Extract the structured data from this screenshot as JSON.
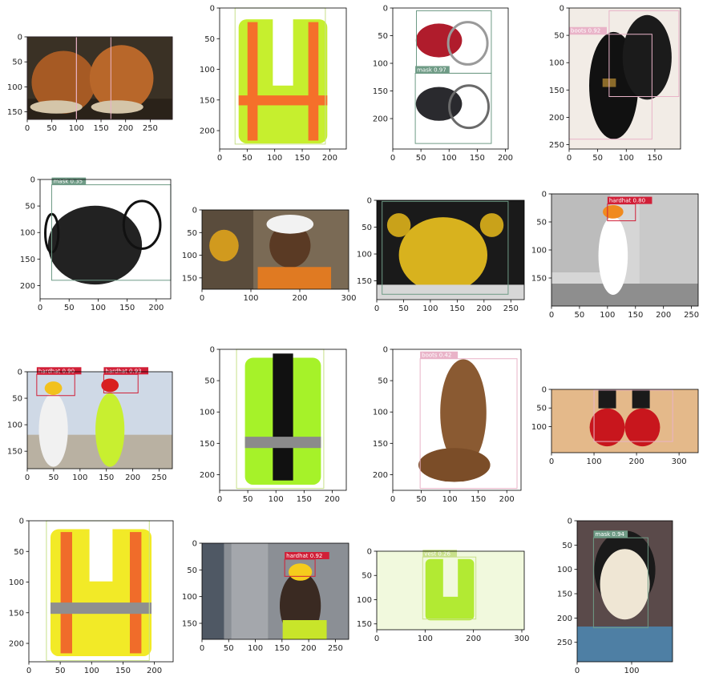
{
  "figure": {
    "rows": 4,
    "cols": 4,
    "colors": {
      "mask": "#6f9b86",
      "boots": "#e9b3c8",
      "vest": "#c8e08a",
      "hardhat": "#d11f37",
      "axes": "#000000",
      "tick_text": "#222222"
    }
  },
  "chart_data": [
    {
      "type": "image",
      "scene": "brown-leather-work-boots",
      "xlim": [
        0,
        295
      ],
      "ylim": [
        0,
        165
      ],
      "xticks": [
        0,
        50,
        100,
        150,
        200,
        250
      ],
      "yticks": [
        0,
        50,
        100,
        150
      ],
      "detections": [
        {
          "label": "",
          "class": "boots",
          "x": [
            0,
            295
          ],
          "y": [
            0,
            165
          ]
        },
        {
          "label": "",
          "class": "boots",
          "x": [
            0,
            100
          ],
          "y": [
            0,
            165
          ]
        },
        {
          "label": "",
          "class": "boots",
          "x": [
            100,
            170
          ],
          "y": [
            0,
            165
          ]
        }
      ]
    },
    {
      "type": "image",
      "scene": "hi-vis-yellow-safety-vest-orange-stripes",
      "xlim": [
        0,
        230
      ],
      "ylim": [
        0,
        230
      ],
      "xticks": [
        0,
        50,
        100,
        150,
        200
      ],
      "yticks": [
        0,
        50,
        100,
        150,
        200
      ],
      "detections": [
        {
          "label": "",
          "class": "vest",
          "x": [
            28,
            192
          ],
          "y": [
            0,
            222
          ]
        }
      ]
    },
    {
      "type": "image",
      "scene": "red-and-black-face-masks",
      "xlim": [
        0,
        205
      ],
      "ylim": [
        0,
        255
      ],
      "xticks": [
        0,
        50,
        100,
        150,
        200
      ],
      "yticks": [
        0,
        50,
        100,
        150,
        200
      ],
      "detections": [
        {
          "label": "",
          "class": "mask",
          "x": [
            42,
            175
          ],
          "y": [
            5,
            118
          ]
        },
        {
          "label": "mask 0.97",
          "class": "mask",
          "x": [
            40,
            175
          ],
          "y": [
            118,
            245
          ]
        }
      ]
    },
    {
      "type": "image",
      "scene": "black-leather-ankle-boots",
      "xlim": [
        0,
        195
      ],
      "ylim": [
        0,
        258
      ],
      "xticks": [
        0,
        50,
        100,
        150
      ],
      "yticks": [
        0,
        50,
        100,
        150,
        200,
        250
      ],
      "detections": [
        {
          "label": "boots 0.92",
          "class": "boots",
          "x": [
            0,
            145
          ],
          "y": [
            48,
            240
          ]
        },
        {
          "label": "",
          "class": "boots",
          "x": [
            70,
            192
          ],
          "y": [
            5,
            162
          ]
        }
      ]
    },
    {
      "type": "image",
      "scene": "black-disposable-face-mask",
      "xlim": [
        0,
        225
      ],
      "ylim": [
        0,
        225
      ],
      "xticks": [
        0,
        50,
        100,
        150,
        200
      ],
      "yticks": [
        0,
        50,
        100,
        150,
        200
      ],
      "detections": [
        {
          "label": "mask 0.35",
          "class": "mask",
          "x": [
            20,
            225
          ],
          "y": [
            10,
            190
          ]
        }
      ]
    },
    {
      "type": "image",
      "scene": "smiling-worker-white-hardhat",
      "xlim": [
        0,
        300
      ],
      "ylim": [
        0,
        175
      ],
      "xticks": [
        0,
        100,
        200,
        300
      ],
      "yticks": [
        0,
        50,
        100,
        150
      ],
      "detections": []
    },
    {
      "type": "image",
      "scene": "golden-ceremonial-mask",
      "xlim": [
        0,
        275
      ],
      "ylim": [
        0,
        185
      ],
      "xticks": [
        0,
        50,
        100,
        150,
        200,
        250
      ],
      "yticks": [
        0,
        50,
        100,
        150
      ],
      "detections": [
        {
          "label": "",
          "class": "mask",
          "x": [
            10,
            245
          ],
          "y": [
            2,
            175
          ]
        }
      ]
    },
    {
      "type": "image",
      "scene": "businessman-orange-hardhat-construction-site",
      "xlim": [
        0,
        262
      ],
      "ylim": [
        0,
        200
      ],
      "xticks": [
        0,
        50,
        100,
        150,
        200,
        250
      ],
      "yticks": [
        0,
        50,
        100,
        150
      ],
      "detections": [
        {
          "label": "hardhat 0.80",
          "class": "hardhat",
          "x": [
            100,
            150
          ],
          "y": [
            18,
            48
          ]
        }
      ]
    },
    {
      "type": "image",
      "scene": "two-workers-hardhats-and-vests",
      "xlim": [
        0,
        275
      ],
      "ylim": [
        0,
        183
      ],
      "xticks": [
        0,
        50,
        100,
        150,
        200,
        250
      ],
      "yticks": [
        0,
        50,
        100,
        150
      ],
      "detections": [
        {
          "label": "hardhat 0.90",
          "class": "hardhat",
          "x": [
            18,
            90
          ],
          "y": [
            5,
            45
          ]
        },
        {
          "label": "hardhat 0.93",
          "class": "hardhat",
          "x": [
            145,
            210
          ],
          "y": [
            5,
            40
          ]
        }
      ]
    },
    {
      "type": "image",
      "scene": "lime-vest-black-trim",
      "xlim": [
        0,
        225
      ],
      "ylim": [
        0,
        225
      ],
      "xticks": [
        0,
        50,
        100,
        150,
        200
      ],
      "yticks": [
        0,
        50,
        100,
        150,
        200
      ],
      "detections": [
        {
          "label": "",
          "class": "vest",
          "x": [
            30,
            185
          ],
          "y": [
            0,
            222
          ]
        }
      ]
    },
    {
      "type": "image",
      "scene": "brown-western-cowboy-boot",
      "xlim": [
        0,
        225
      ],
      "ylim": [
        0,
        225
      ],
      "xticks": [
        0,
        50,
        100,
        150,
        200
      ],
      "yticks": [
        0,
        50,
        100,
        150,
        200
      ],
      "detections": [
        {
          "label": "boots 0.42",
          "class": "boots",
          "x": [
            48,
            218
          ],
          "y": [
            15,
            222
          ]
        }
      ]
    },
    {
      "type": "image",
      "scene": "red-patent-lace-up-boots",
      "xlim": [
        0,
        345
      ],
      "ylim": [
        0,
        170
      ],
      "xticks": [
        0,
        100,
        200,
        300
      ],
      "yticks": [
        0,
        50,
        100
      ],
      "detections": [
        {
          "label": "",
          "class": "boots",
          "x": [
            100,
            285
          ],
          "y": [
            2,
            140
          ]
        }
      ]
    },
    {
      "type": "image",
      "scene": "yellow-orange-stripe-vest",
      "xlim": [
        0,
        230
      ],
      "ylim": [
        0,
        230
      ],
      "xticks": [
        0,
        50,
        100,
        150,
        200
      ],
      "yticks": [
        0,
        50,
        100,
        150,
        200
      ],
      "detections": [
        {
          "label": "",
          "class": "vest",
          "x": [
            28,
            192
          ],
          "y": [
            0,
            228
          ]
        }
      ]
    },
    {
      "type": "image",
      "scene": "warehouse-worker-yellow-hardhat-radio",
      "xlim": [
        0,
        275
      ],
      "ylim": [
        0,
        180
      ],
      "xticks": [
        0,
        50,
        100,
        150,
        200,
        250
      ],
      "yticks": [
        0,
        50,
        100,
        150
      ],
      "detections": [
        {
          "label": "hardhat 0.92",
          "class": "hardhat",
          "x": [
            155,
            212
          ],
          "y": [
            30,
            62
          ]
        }
      ]
    },
    {
      "type": "image",
      "scene": "small-lime-vest",
      "xlim": [
        0,
        305
      ],
      "ylim": [
        0,
        162
      ],
      "xticks": [
        0,
        100,
        200,
        300
      ],
      "yticks": [
        0,
        50,
        100,
        150
      ],
      "detections": [
        {
          "label": "vest 0.26",
          "class": "vest",
          "x": [
            95,
            205
          ],
          "y": [
            12,
            140
          ]
        }
      ]
    },
    {
      "type": "image",
      "scene": "guy-fawkes-mask-person",
      "xlim": [
        0,
        175
      ],
      "ylim": [
        0,
        290
      ],
      "xticks": [
        0,
        100
      ],
      "yticks": [
        0,
        50,
        100,
        150,
        200,
        250
      ],
      "detections": [
        {
          "label": "mask 0.94",
          "class": "mask",
          "x": [
            30,
            130
          ],
          "y": [
            35,
            220
          ]
        }
      ]
    }
  ]
}
